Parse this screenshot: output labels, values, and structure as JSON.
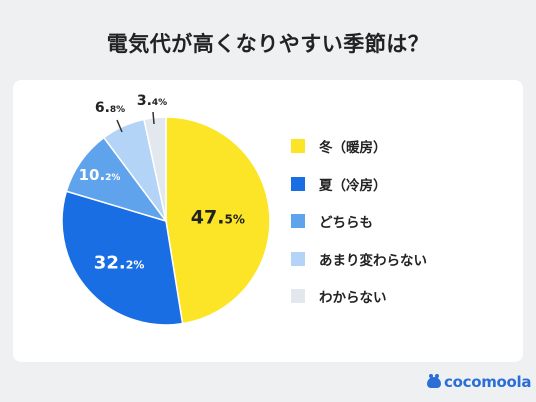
{
  "chart_data": {
    "type": "pie",
    "title": "電気代が高くなりやすい季節は？",
    "slices": [
      {
        "label": "冬（暖房）",
        "value": 47.5,
        "value_main": "47.",
        "value_small": "5%",
        "color": "#fce526"
      },
      {
        "label": "夏（冷房）",
        "value": 32.2,
        "value_main": "32.",
        "value_small": "2%",
        "color": "#1a6ee3"
      },
      {
        "label": "どちらも",
        "value": 10.2,
        "value_main": "10.",
        "value_small": "2%",
        "color": "#5fa3ec"
      },
      {
        "label": "あまり変わらない",
        "value": 6.8,
        "value_main": "6.",
        "value_small": "8%",
        "color": "#b3d3f7"
      },
      {
        "label": "わからない",
        "value": 3.4,
        "value_main": "3.",
        "value_small": "4%",
        "color": "#e3e8ee"
      }
    ],
    "start_angle": "12 o'clock",
    "direction": "clockwise",
    "legend_position": "right"
  },
  "branding": {
    "logo_text": "cocomoola",
    "logo_color": "#2b6fd6"
  }
}
